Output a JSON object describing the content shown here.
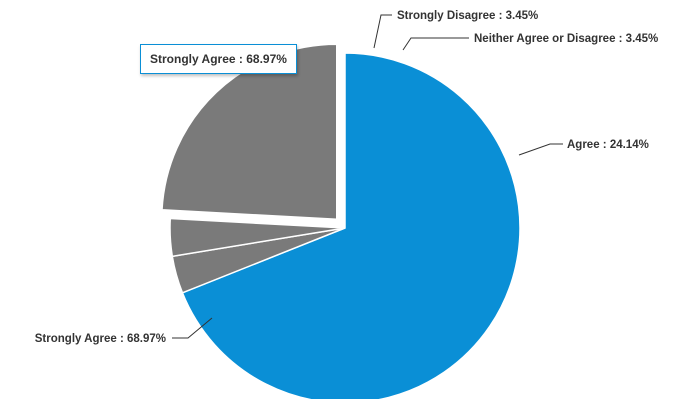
{
  "chart_data": {
    "type": "pie",
    "title": "",
    "slices": [
      {
        "label": "Strongly Agree",
        "value": 68.97,
        "color": "#0a8fd6",
        "data_label": "Strongly Agree : 68.97%"
      },
      {
        "label": "Strongly Disagree",
        "value": 3.45,
        "color": "#7a7a7a",
        "data_label": "Strongly Disagree : 3.45%"
      },
      {
        "label": "Neither Agree or Disagree",
        "value": 3.45,
        "color": "#7a7a7a",
        "data_label": "Neither Agree or Disagree : 3.45%"
      },
      {
        "label": "Agree",
        "value": 24.14,
        "color": "#7a7a7a",
        "data_label": "Agree : 24.14%"
      }
    ],
    "exploded_slice": "Agree",
    "legend": "none"
  },
  "tooltip": {
    "text": "Strongly Agree : 68.97%"
  }
}
